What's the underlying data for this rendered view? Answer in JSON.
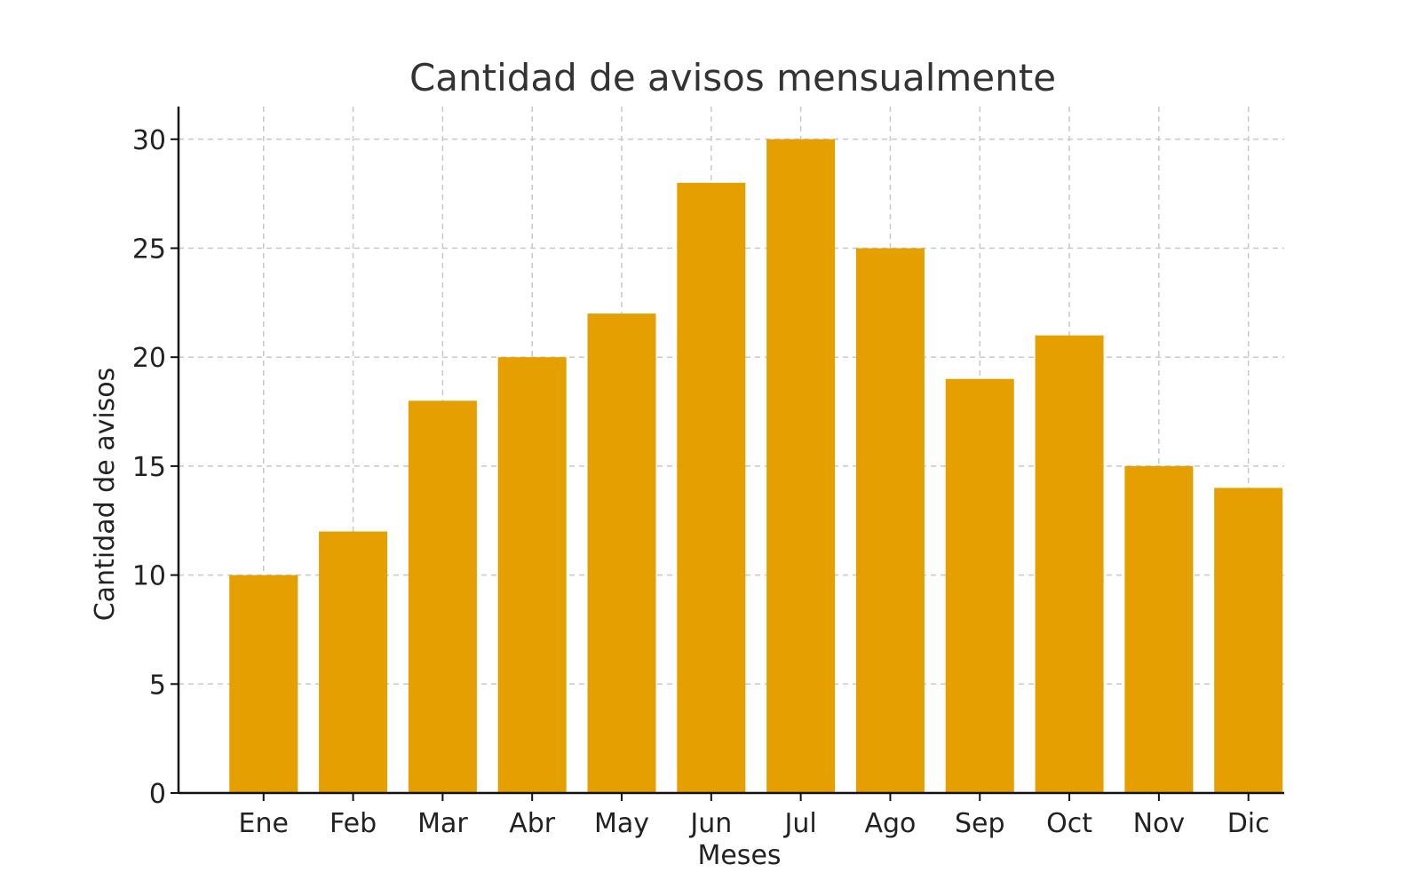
{
  "chart_data": {
    "type": "bar",
    "title": "Cantidad de avisos mensualmente",
    "xlabel": "Meses",
    "ylabel": "Cantidad de avisos",
    "categories": [
      "Ene",
      "Feb",
      "Mar",
      "Abr",
      "May",
      "Jun",
      "Jul",
      "Ago",
      "Sep",
      "Oct",
      "Nov",
      "Dic"
    ],
    "values": [
      10,
      12,
      18,
      20,
      22,
      28,
      30,
      25,
      19,
      21,
      15,
      14
    ],
    "ylim": [
      0,
      31.5
    ],
    "yticks": [
      0,
      5,
      10,
      15,
      20,
      25,
      30
    ],
    "grid": true,
    "bar_color": "#E5A000",
    "grid_color": "#C8C8C8",
    "axis_color": "#111111"
  }
}
